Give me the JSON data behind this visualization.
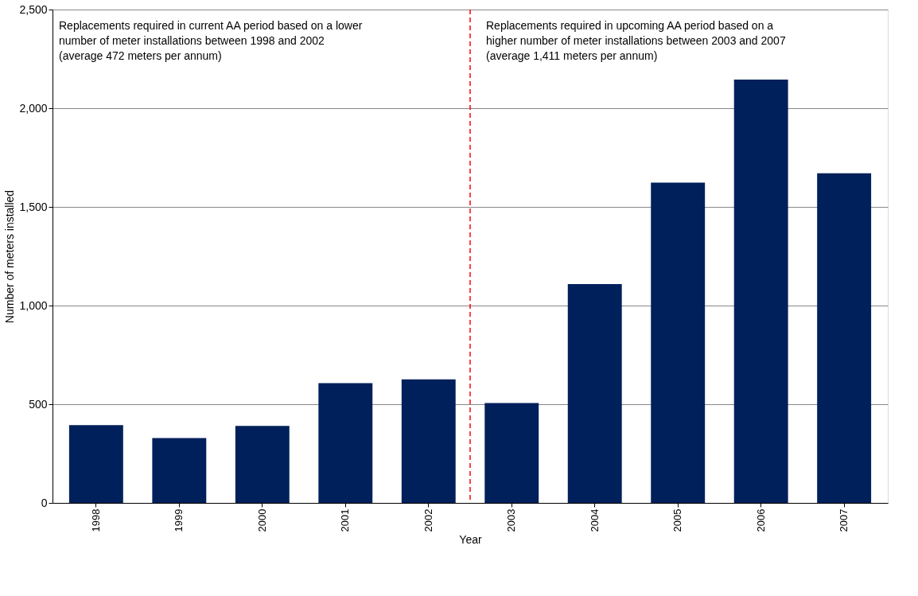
{
  "chart_data": {
    "type": "bar",
    "xlabel": "Year",
    "ylabel": "Number of meters installed",
    "categories": [
      "1998",
      "1999",
      "2000",
      "2001",
      "2002",
      "2003",
      "2004",
      "2005",
      "2006",
      "2007"
    ],
    "series": [
      {
        "color": "#00205b",
        "values": [
          394,
          329,
          390,
          607,
          626,
          506,
          1109,
          1623,
          2145,
          1670
        ]
      }
    ],
    "ylim": [
      0,
      2500
    ],
    "yticks": [
      0,
      {
        "value": 500,
        "label": "500"
      },
      {
        "value": 1000,
        "label": "1,000"
      },
      {
        "value": 1500,
        "label": "1,500"
      },
      {
        "value": 2000,
        "label": "2,000"
      },
      {
        "value": 2500,
        "label": "2,500"
      }
    ],
    "grid": "y",
    "ref_lines": [
      {
        "axis": "x",
        "value": "2003",
        "color": "#ff0000",
        "line_style": "dashed"
      }
    ],
    "annotations": [
      "Replacements required in current AA period based on a lower\nnumber of meter installations between 1998 and 2002\n(average 472 meters per annum)",
      "Replacements required in upcoming AA period based on a\nhigher number of meter installations between 2003 and 2007\n(average 1,411 meters per annum)"
    ]
  }
}
